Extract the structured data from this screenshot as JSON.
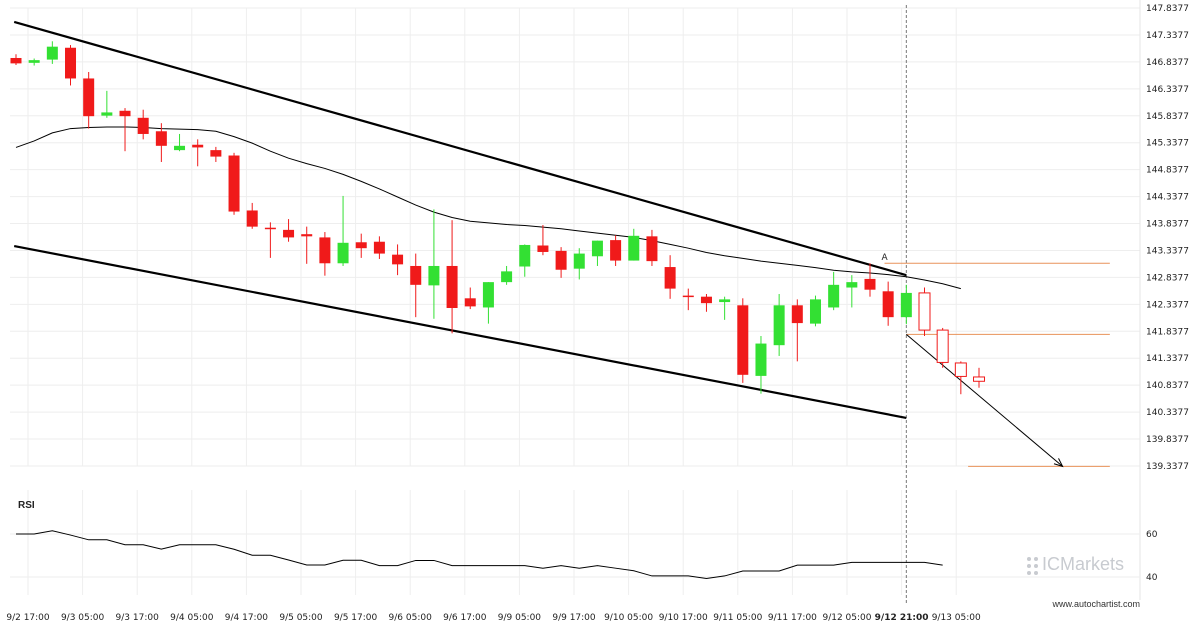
{
  "chart_data": {
    "type": "candlestick",
    "x_ticks": [
      "9/2 17:00",
      "9/3 05:00",
      "9/3 17:00",
      "9/4 05:00",
      "9/4 17:00",
      "9/5 05:00",
      "9/5 17:00",
      "9/6 05:00",
      "9/6 17:00",
      "9/9 05:00",
      "9/9 17:00",
      "9/10 05:00",
      "9/10 17:00",
      "9/11 05:00",
      "9/11 17:00",
      "9/12 05:00",
      "9/12 21:00",
      "9/13 05:00"
    ],
    "highlight_tick": "9/12 21:00",
    "y_ticks": [
      "147.8377",
      "147.3377",
      "146.8377",
      "146.3377",
      "145.8377",
      "145.3377",
      "144.8377",
      "144.3377",
      "143.8377",
      "143.3377",
      "142.8377",
      "142.3377",
      "141.8377",
      "141.3377",
      "140.8377",
      "140.3377",
      "139.8377",
      "139.3377"
    ],
    "ylim": [
      139.3377,
      147.8377
    ],
    "candles": [
      {
        "o": 146.91,
        "h": 146.98,
        "l": 146.78,
        "c": 146.81
      },
      {
        "o": 146.82,
        "h": 146.9,
        "l": 146.77,
        "c": 146.87
      },
      {
        "o": 146.88,
        "h": 147.22,
        "l": 146.8,
        "c": 147.12
      },
      {
        "o": 147.1,
        "h": 147.15,
        "l": 146.4,
        "c": 146.53
      },
      {
        "o": 146.53,
        "h": 146.65,
        "l": 145.6,
        "c": 145.83
      },
      {
        "o": 145.84,
        "h": 146.3,
        "l": 145.8,
        "c": 145.9
      },
      {
        "o": 145.93,
        "h": 145.98,
        "l": 145.18,
        "c": 145.83
      },
      {
        "o": 145.8,
        "h": 145.95,
        "l": 145.4,
        "c": 145.5
      },
      {
        "o": 145.55,
        "h": 145.7,
        "l": 144.98,
        "c": 145.28
      },
      {
        "o": 145.2,
        "h": 145.5,
        "l": 145.18,
        "c": 145.28
      },
      {
        "o": 145.3,
        "h": 145.4,
        "l": 144.9,
        "c": 145.25
      },
      {
        "o": 145.2,
        "h": 145.26,
        "l": 144.98,
        "c": 145.08
      },
      {
        "o": 145.1,
        "h": 145.15,
        "l": 144.0,
        "c": 144.06
      },
      {
        "o": 144.08,
        "h": 144.22,
        "l": 143.74,
        "c": 143.78
      },
      {
        "o": 143.76,
        "h": 143.86,
        "l": 143.2,
        "c": 143.74
      },
      {
        "o": 143.72,
        "h": 143.92,
        "l": 143.5,
        "c": 143.58
      },
      {
        "o": 143.64,
        "h": 143.78,
        "l": 143.09,
        "c": 143.6
      },
      {
        "o": 143.58,
        "h": 143.68,
        "l": 142.87,
        "c": 143.1
      },
      {
        "o": 143.1,
        "h": 144.35,
        "l": 143.05,
        "c": 143.48
      },
      {
        "o": 143.49,
        "h": 143.65,
        "l": 143.2,
        "c": 143.38
      },
      {
        "o": 143.5,
        "h": 143.6,
        "l": 143.18,
        "c": 143.28
      },
      {
        "o": 143.26,
        "h": 143.45,
        "l": 142.88,
        "c": 143.08
      },
      {
        "o": 143.05,
        "h": 143.28,
        "l": 142.1,
        "c": 142.7
      },
      {
        "o": 142.69,
        "h": 144.1,
        "l": 142.07,
        "c": 143.05
      },
      {
        "o": 143.05,
        "h": 143.9,
        "l": 141.8,
        "c": 142.27
      },
      {
        "o": 142.45,
        "h": 142.65,
        "l": 142.25,
        "c": 142.3
      },
      {
        "o": 142.28,
        "h": 142.75,
        "l": 141.98,
        "c": 142.75
      },
      {
        "o": 142.75,
        "h": 143.05,
        "l": 142.7,
        "c": 142.95
      },
      {
        "o": 143.04,
        "h": 143.45,
        "l": 142.85,
        "c": 143.44
      },
      {
        "o": 143.43,
        "h": 143.81,
        "l": 143.25,
        "c": 143.31
      },
      {
        "o": 143.33,
        "h": 143.4,
        "l": 142.83,
        "c": 142.98
      },
      {
        "o": 143.0,
        "h": 143.38,
        "l": 142.8,
        "c": 143.28
      },
      {
        "o": 143.23,
        "h": 143.52,
        "l": 143.05,
        "c": 143.52
      },
      {
        "o": 143.53,
        "h": 143.62,
        "l": 143.05,
        "c": 143.15
      },
      {
        "o": 143.15,
        "h": 143.74,
        "l": 143.15,
        "c": 143.61
      },
      {
        "o": 143.6,
        "h": 143.72,
        "l": 143.05,
        "c": 143.14
      },
      {
        "o": 143.03,
        "h": 143.25,
        "l": 142.44,
        "c": 142.63
      },
      {
        "o": 142.5,
        "h": 142.63,
        "l": 142.23,
        "c": 142.48
      },
      {
        "o": 142.48,
        "h": 142.53,
        "l": 142.2,
        "c": 142.36
      },
      {
        "o": 142.38,
        "h": 142.48,
        "l": 142.05,
        "c": 142.43
      },
      {
        "o": 142.32,
        "h": 142.45,
        "l": 140.88,
        "c": 141.03
      },
      {
        "o": 141.01,
        "h": 141.75,
        "l": 140.68,
        "c": 141.61
      },
      {
        "o": 141.58,
        "h": 142.53,
        "l": 141.38,
        "c": 142.32
      },
      {
        "o": 142.32,
        "h": 142.43,
        "l": 141.28,
        "c": 141.99
      },
      {
        "o": 141.98,
        "h": 142.5,
        "l": 141.93,
        "c": 142.43
      },
      {
        "o": 142.28,
        "h": 142.94,
        "l": 142.23,
        "c": 142.7
      },
      {
        "o": 142.65,
        "h": 142.88,
        "l": 142.28,
        "c": 142.75
      },
      {
        "o": 142.81,
        "h": 143.1,
        "l": 142.48,
        "c": 142.61
      },
      {
        "o": 142.58,
        "h": 142.76,
        "l": 141.94,
        "c": 142.1
      },
      {
        "o": 142.1,
        "h": 142.7,
        "l": 141.97,
        "c": 142.55
      },
      {
        "o": 142.55,
        "h": 142.65,
        "l": 141.75,
        "c": 141.86
      },
      {
        "o": 141.86,
        "h": 141.9,
        "l": 141.16,
        "c": 141.26
      },
      {
        "o": 141.0,
        "h": 141.28,
        "l": 140.67,
        "c": 141.25
      },
      {
        "o": 140.91,
        "h": 141.16,
        "l": 140.79,
        "c": 140.99
      }
    ],
    "ma_line": [
      145.25,
      145.37,
      145.52,
      145.6,
      145.62,
      145.63,
      145.63,
      145.62,
      145.6,
      145.59,
      145.58,
      145.55,
      145.45,
      145.33,
      145.18,
      145.05,
      144.95,
      144.86,
      144.75,
      144.62,
      144.48,
      144.33,
      144.18,
      144.05,
      143.95,
      143.88,
      143.85,
      143.82,
      143.8,
      143.77,
      143.74,
      143.7,
      143.66,
      143.62,
      143.58,
      143.52,
      143.45,
      143.38,
      143.3,
      143.24,
      143.19,
      143.14,
      143.1,
      143.06,
      143.02,
      142.97,
      142.94,
      142.92,
      142.89,
      142.85,
      142.79,
      142.72,
      142.63
    ],
    "channel_upper": {
      "from": {
        "i": -0.1,
        "price": 147.58
      },
      "to": {
        "i": 49.0,
        "price": 142.88
      }
    },
    "channel_lower": {
      "from": {
        "i": -0.1,
        "price": 143.42
      },
      "to": {
        "i": 49.0,
        "price": 140.23
      }
    },
    "forecast_arrow": {
      "from": {
        "i": 49.0,
        "price": 141.78
      },
      "to": {
        "i": 57.6,
        "price": 139.33
      }
    },
    "levels": [
      {
        "price": 143.1,
        "from_i": 47.8,
        "to_i": 60.2
      },
      {
        "price": 141.78,
        "from_i": 49.0,
        "to_i": 60.2
      },
      {
        "price": 139.33,
        "from_i": 52.4,
        "to_i": 60.2
      }
    ],
    "marker_label": "A",
    "marker": {
      "i": 47.8,
      "price": 143.16
    },
    "now_i": 49.0,
    "rsi": {
      "title": "RSI",
      "y_ticks": [
        "60",
        "40"
      ],
      "ylim": [
        40,
        60
      ],
      "values": [
        60.0,
        60.0,
        61.5,
        59.5,
        57.3,
        57.3,
        55.0,
        55.0,
        53.0,
        55.0,
        55.0,
        55.0,
        52.9,
        50.1,
        50.1,
        47.9,
        45.6,
        45.6,
        47.8,
        47.8,
        45.3,
        45.3,
        47.7,
        47.7,
        45.3,
        45.3,
        45.3,
        45.3,
        45.3,
        44.1,
        45.3,
        44.1,
        45.3,
        44.1,
        42.9,
        40.5,
        40.5,
        40.5,
        39.3,
        40.5,
        42.8,
        42.8,
        42.8,
        45.5,
        45.5,
        45.5,
        46.8,
        46.8,
        46.8,
        46.8,
        46.8,
        45.5
      ]
    }
  },
  "watermark": "ICMarkets",
  "credit": "www.autochartist.com",
  "colors": {
    "up": "#33e033",
    "down": "#f01a1a",
    "projected": "#f01a1a",
    "level": "#e8925a",
    "channel": "#000000",
    "ma": "#000000"
  }
}
